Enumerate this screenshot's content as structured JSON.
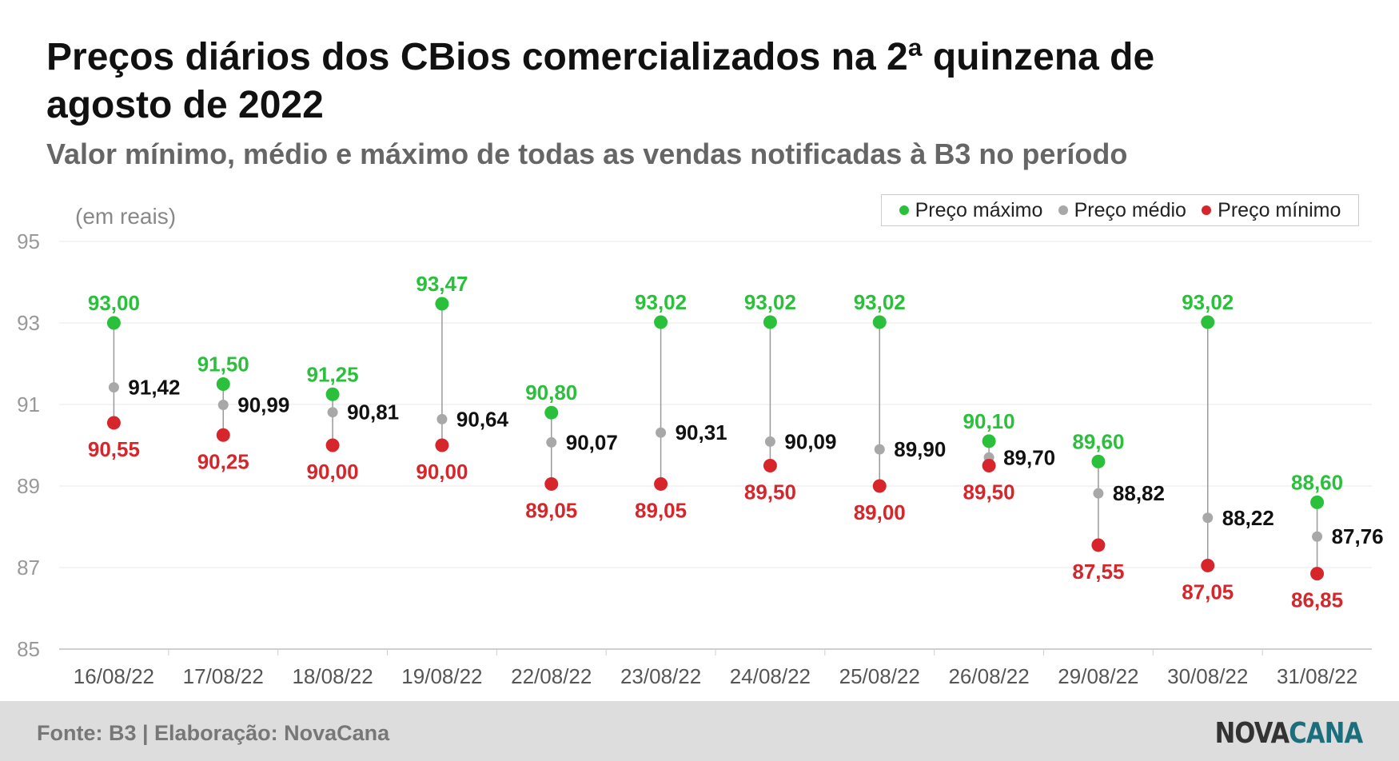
{
  "header": {
    "title": "Preços diários dos CBios comercializados na 2ª quinzena de agosto de 2022",
    "subtitle": "Valor mínimo, médio e máximo de todas as vendas notificadas à B3 no período"
  },
  "legend": {
    "items": [
      {
        "label": "Preço máximo",
        "color": "#2ac03c"
      },
      {
        "label": "Preço médio",
        "color": "#a8a8a8"
      },
      {
        "label": "Preço mínimo",
        "color": "#d6262b"
      }
    ]
  },
  "chart_data": {
    "type": "scatter",
    "unit_label": "(em reais)",
    "ylim": [
      85,
      95
    ],
    "yticks": [
      95,
      93,
      91,
      89,
      87,
      85
    ],
    "grid": true,
    "legend_position": "top-right",
    "categories": [
      "16/08/22",
      "17/08/22",
      "18/08/22",
      "19/08/22",
      "22/08/22",
      "23/08/22",
      "24/08/22",
      "25/08/22",
      "26/08/22",
      "29/08/22",
      "30/08/22",
      "31/08/22"
    ],
    "series": [
      {
        "name": "Preço máximo",
        "color": "#2ac03c",
        "values": [
          93.0,
          91.5,
          91.25,
          93.47,
          90.8,
          93.02,
          93.02,
          93.02,
          90.1,
          89.6,
          93.02,
          88.6
        ],
        "labels": [
          "93,00",
          "91,50",
          "91,25",
          "93,47",
          "90,80",
          "93,02",
          "93,02",
          "93,02",
          "90,10",
          "89,60",
          "93,02",
          "88,60"
        ]
      },
      {
        "name": "Preço médio",
        "color": "#a8a8a8",
        "values": [
          91.42,
          90.99,
          90.81,
          90.64,
          90.07,
          90.31,
          90.09,
          89.9,
          89.7,
          88.82,
          88.22,
          87.76
        ],
        "labels": [
          "91,42",
          "90,99",
          "90,81",
          "90,64",
          "90,07",
          "90,31",
          "90,09",
          "89,90",
          "89,70",
          "88,82",
          "88,22",
          "87,76"
        ]
      },
      {
        "name": "Preço mínimo",
        "color": "#d6262b",
        "values": [
          90.55,
          90.25,
          90.0,
          90.0,
          89.05,
          89.05,
          89.5,
          89.0,
          89.5,
          87.55,
          87.05,
          86.85
        ],
        "labels": [
          "90,55",
          "90,25",
          "90,00",
          "90,00",
          "89,05",
          "89,05",
          "89,50",
          "89,00",
          "89,50",
          "87,55",
          "87,05",
          "86,85"
        ]
      }
    ]
  },
  "footer": {
    "source": "Fonte: B3 | Elaboração: NovaCana",
    "logo_part1": "NOVA",
    "logo_part2": "CANA"
  }
}
